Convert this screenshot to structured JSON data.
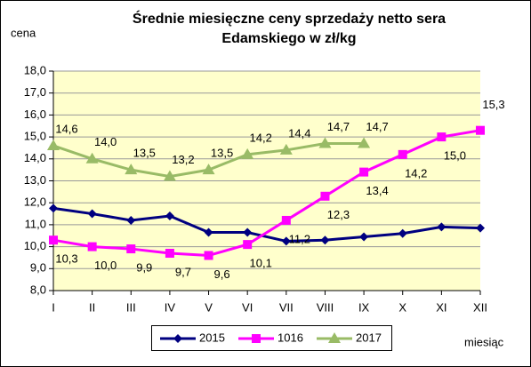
{
  "chart_data": {
    "type": "line",
    "title": [
      "Średnie miesięczne ceny sprzedaży netto sera",
      "Edamskiego w zł/kg"
    ],
    "y_label": "cena",
    "x_label": "miesiąc",
    "categories": [
      "I",
      "II",
      "III",
      "IV",
      "V",
      "VI",
      "VII",
      "VIII",
      "IX",
      "X",
      "XI",
      "XII"
    ],
    "ylim": [
      8,
      18
    ],
    "yticks": [
      {
        "value": 8,
        "label": "8,0"
      },
      {
        "value": 9,
        "label": "9,0"
      },
      {
        "value": 10,
        "label": "10,0"
      },
      {
        "value": 11,
        "label": "11,0"
      },
      {
        "value": 12,
        "label": "12,0"
      },
      {
        "value": 13,
        "label": "13,0"
      },
      {
        "value": 14,
        "label": "14,0"
      },
      {
        "value": 15,
        "label": "15,0"
      },
      {
        "value": 16,
        "label": "16,0"
      },
      {
        "value": 17,
        "label": "17,0"
      },
      {
        "value": 18,
        "label": "18,0"
      }
    ],
    "grid": true,
    "legend": "bottom",
    "series": [
      {
        "name": "2015",
        "color": "#000080",
        "marker": "diamond",
        "values": [
          11.75,
          11.5,
          11.2,
          11.4,
          10.65,
          10.65,
          10.25,
          10.3,
          10.45,
          10.6,
          10.9,
          10.85
        ]
      },
      {
        "name": "1016",
        "color": "#ff00ff",
        "marker": "square",
        "values": [
          10.3,
          10.0,
          9.9,
          9.7,
          9.6,
          10.1,
          11.2,
          12.3,
          13.4,
          14.2,
          15.0,
          15.3
        ],
        "value_labels": [
          "10,3",
          "10,0",
          "9,9",
          "9,7",
          "9,6",
          "10,1",
          "11,2",
          "12,3",
          "13,4",
          "14,2",
          "15,0",
          "15,3"
        ]
      },
      {
        "name": "2017",
        "color": "#99bb66",
        "marker": "triangle",
        "values": [
          14.6,
          14.0,
          13.5,
          13.2,
          13.5,
          14.2,
          14.4,
          14.7,
          14.7,
          null,
          null,
          null
        ],
        "value_labels": [
          "14,6",
          "14,0",
          "13,5",
          "13,2",
          "13,5",
          "14,2",
          "14,4",
          "14,7",
          "14,7",
          null,
          null,
          null
        ]
      }
    ]
  }
}
